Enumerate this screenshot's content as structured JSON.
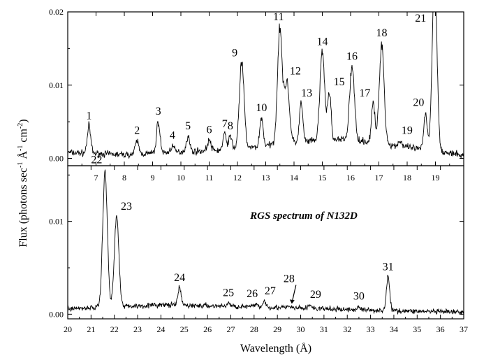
{
  "chart_data": [
    {
      "type": "line",
      "panel": "top",
      "title": "",
      "xlabel": "",
      "ylabel": "",
      "xlim": [
        6.0,
        20.0
      ],
      "ylim": [
        -0.001,
        0.02
      ],
      "xticks": [
        "7",
        "8",
        "9",
        "10",
        "11",
        "12",
        "13",
        "14",
        "15",
        "16",
        "17",
        "18",
        "19"
      ],
      "yticks": [
        "0.00",
        "0.01",
        "0.02"
      ],
      "baseline": [
        [
          6.0,
          0.0008
        ],
        [
          8.0,
          0.0005
        ],
        [
          10.0,
          0.0009
        ],
        [
          12.0,
          0.0012
        ],
        [
          14.0,
          0.0022
        ],
        [
          16.0,
          0.0026
        ],
        [
          18.0,
          0.0015
        ],
        [
          20.0,
          0.0004
        ]
      ],
      "peaks": [
        {
          "label": "1",
          "x": 6.75,
          "y": 0.0044
        },
        {
          "label": "2",
          "x": 8.45,
          "y": 0.0024
        },
        {
          "label": "3",
          "x": 9.2,
          "y": 0.005
        },
        {
          "label": "4",
          "x": 9.7,
          "y": 0.0017
        },
        {
          "label": "5",
          "x": 10.25,
          "y": 0.003
        },
        {
          "label": "6",
          "x": 11.0,
          "y": 0.0025
        },
        {
          "label": "7",
          "x": 11.55,
          "y": 0.0033
        },
        {
          "label": "8",
          "x": 11.75,
          "y": 0.003
        },
        {
          "label": "9",
          "x": 12.15,
          "y": 0.013
        },
        {
          "label": "10",
          "x": 12.85,
          "y": 0.0055
        },
        {
          "label": "11",
          "x": 13.5,
          "y": 0.0179
        },
        {
          "label": "12",
          "x": 13.75,
          "y": 0.0105
        },
        {
          "label": "13",
          "x": 14.25,
          "y": 0.0075
        },
        {
          "label": "14",
          "x": 15.0,
          "y": 0.0145
        },
        {
          "label": "15",
          "x": 15.25,
          "y": 0.009
        },
        {
          "label": "16",
          "x": 16.05,
          "y": 0.0125
        },
        {
          "label": "17",
          "x": 16.8,
          "y": 0.0075
        },
        {
          "label": "18",
          "x": 17.1,
          "y": 0.0157
        },
        {
          "label": "19",
          "x": 17.75,
          "y": 0.0024
        },
        {
          "label": "20",
          "x": 18.65,
          "y": 0.0062
        },
        {
          "label": "21",
          "x": 18.97,
          "y": 0.025
        }
      ]
    },
    {
      "type": "line",
      "panel": "bottom",
      "title": "RGS spectrum of N132D",
      "xlabel": "Wavelength (Å)",
      "ylabel": "Flux (photons sec-1 Å-1 cm-2)",
      "xlim": [
        20.0,
        37.0
      ],
      "ylim": [
        -0.0005,
        0.016
      ],
      "xticks": [
        "20",
        "21",
        "22",
        "23",
        "24",
        "25",
        "26",
        "27",
        "28",
        "29",
        "30",
        "31",
        "32",
        "33",
        "34",
        "35",
        "36",
        "37"
      ],
      "yticks": [
        "0.00",
        "0.01"
      ],
      "baseline": [
        [
          20.0,
          0.0006
        ],
        [
          24.0,
          0.001
        ],
        [
          28.0,
          0.0008
        ],
        [
          32.0,
          0.0005
        ],
        [
          37.0,
          0.0002
        ]
      ],
      "peaks": [
        {
          "label": "22",
          "x": 21.6,
          "y": 0.0155
        },
        {
          "label": "23",
          "x": 22.1,
          "y": 0.0105
        },
        {
          "label": "24",
          "x": 24.8,
          "y": 0.0028
        },
        {
          "label": "25",
          "x": 26.9,
          "y": 0.0012
        },
        {
          "label": "26",
          "x": 28.1,
          "y": 0.0011
        },
        {
          "label": "27",
          "x": 28.45,
          "y": 0.0014
        },
        {
          "label": "28",
          "x": 29.5,
          "y": 0.0008
        },
        {
          "label": "29",
          "x": 30.4,
          "y": 0.001
        },
        {
          "label": "30",
          "x": 32.5,
          "y": 0.0008
        },
        {
          "label": "31",
          "x": 33.75,
          "y": 0.004
        }
      ],
      "annotations": [
        {
          "text": "28",
          "arrow": "down"
        }
      ]
    }
  ],
  "y_axis_title": {
    "prefix": "Flux (photons sec",
    "sup1": "-1",
    "mid1": " Å",
    "sup2": "-1",
    "mid2": " cm",
    "sup3": "-2",
    "suffix": ")"
  },
  "x_axis_title": "Wavelength (Å)",
  "inner_title": "RGS spectrum of N132D"
}
